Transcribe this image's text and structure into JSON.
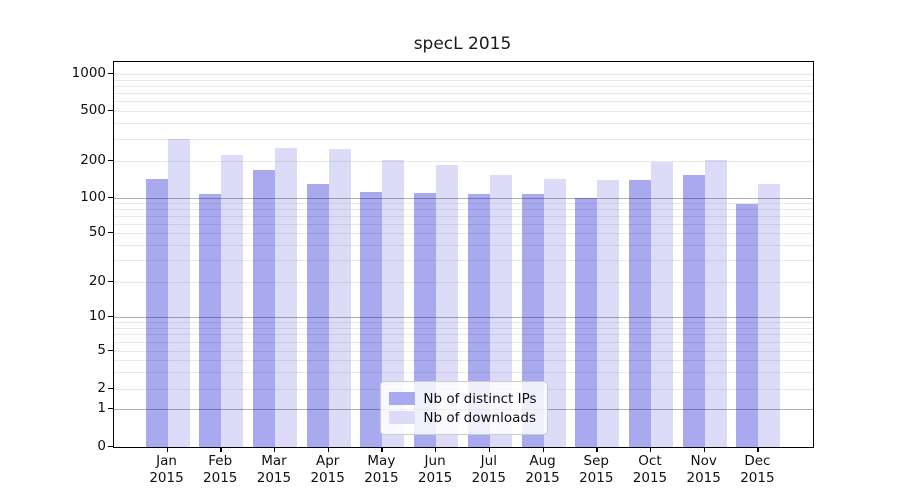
{
  "chart_data": {
    "type": "bar",
    "title": "specL 2015",
    "categories": [
      "Jan",
      "Feb",
      "Mar",
      "Apr",
      "May",
      "Jun",
      "Jul",
      "Aug",
      "Sep",
      "Oct",
      "Nov",
      "Dec"
    ],
    "category_year": "2015",
    "series": [
      {
        "name": "Nb of distinct IPs",
        "color": "#a9a9ef",
        "values": [
          143,
          108,
          168,
          129,
          111,
          110,
          107,
          107,
          100,
          139,
          153,
          89
        ]
      },
      {
        "name": "Nb of downloads",
        "color": "#dcdcf8",
        "values": [
          298,
          222,
          254,
          251,
          203,
          184,
          153,
          142,
          139,
          197,
          204,
          130
        ]
      }
    ],
    "y_ticks": [
      0,
      1,
      2,
      5,
      10,
      20,
      50,
      100,
      200,
      500,
      1000
    ],
    "xlabel": "",
    "ylabel": "",
    "scale": "log-like (0 baseline, decades compressed near bottom)",
    "grid": true,
    "legend_position": "lower center",
    "frame_color": "#000000",
    "background_color": "#ffffff"
  }
}
